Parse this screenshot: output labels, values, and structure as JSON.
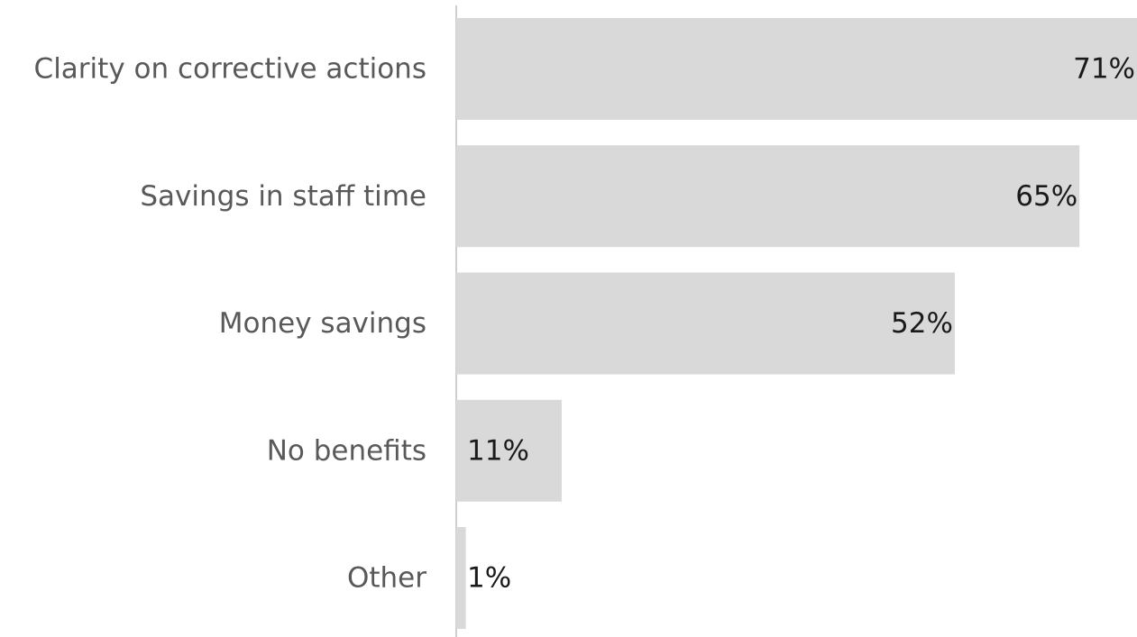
{
  "chart_data": {
    "type": "bar",
    "orientation": "horizontal",
    "categories": [
      "Clarity on corrective actions",
      "Savings in staff time",
      "Money savings",
      "No benefits",
      "Other"
    ],
    "values": [
      71,
      65,
      52,
      11,
      1
    ],
    "value_labels": [
      "71%",
      "65%",
      "52%",
      "11%",
      "1%"
    ],
    "unit": "%",
    "xlim": [
      0,
      71
    ],
    "grid": false,
    "legend": "none",
    "bar_color": "#d9d9d9",
    "axis_color": "#bfbfbf",
    "category_label_color": "#595959",
    "value_label_color": "#1a1a1a"
  }
}
